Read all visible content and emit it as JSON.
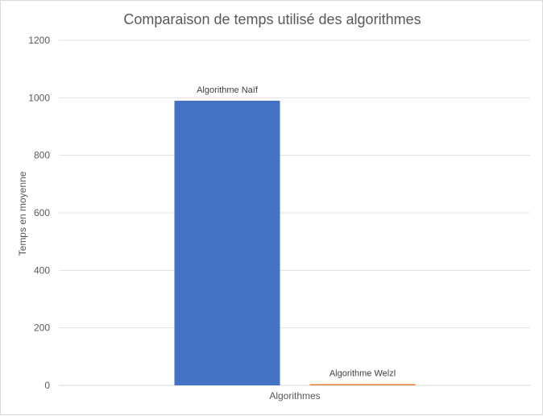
{
  "chart_data": {
    "type": "bar",
    "title": "Comparaison de temps utilisé des algorithmes",
    "xlabel": "Algorithmes",
    "ylabel": "Temps en moyenne",
    "ylim": [
      0,
      1200
    ],
    "yticks": [
      0,
      200,
      400,
      600,
      800,
      1000,
      1200
    ],
    "grid": true,
    "series": [
      {
        "name": "Algorithme Naïf",
        "value": 990,
        "color": "#4472C4"
      },
      {
        "name": "Algorithme Welzl",
        "value": 2,
        "color": "#ED7D31"
      }
    ]
  }
}
